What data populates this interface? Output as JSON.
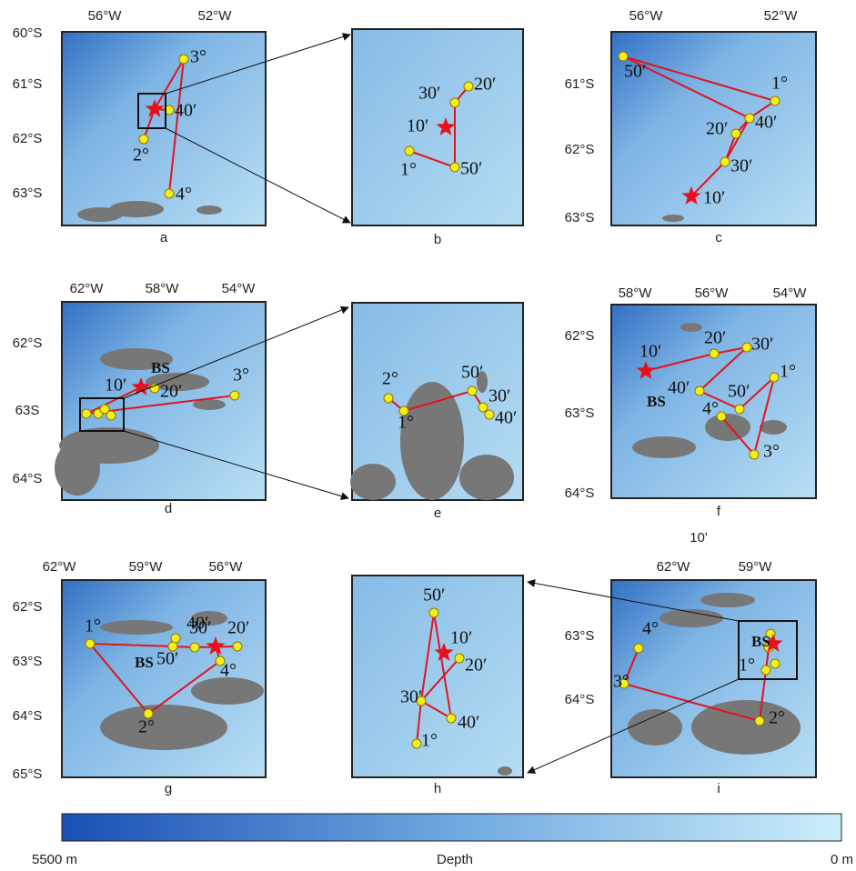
{
  "panels": [
    {
      "label": "a",
      "lon_labels": [
        "56°W",
        "52°W"
      ],
      "lat_labels": [
        "60°S",
        "61°S",
        "62°S",
        "63°S"
      ],
      "point_labels": [
        "3°",
        "40′",
        "2°",
        "4°"
      ],
      "annotations": []
    },
    {
      "label": "b",
      "lon_labels": [],
      "lat_labels": [],
      "point_labels": [
        "20′",
        "30′",
        "10′",
        "1°",
        "50′"
      ],
      "annotations": []
    },
    {
      "label": "c",
      "lon_labels": [
        "56°W",
        "52°W"
      ],
      "lat_labels": [
        "61°S",
        "62°S",
        "63°S"
      ],
      "point_labels": [
        "50′",
        "1°",
        "40′",
        "20′",
        "30′",
        "10′"
      ],
      "annotations": []
    },
    {
      "label": "d",
      "lon_labels": [
        "62°W",
        "58°W",
        "54°W"
      ],
      "lat_labels": [
        "62°S",
        "63S",
        "64°S"
      ],
      "point_labels": [
        "3°",
        "20′",
        "10′"
      ],
      "annotations": [
        "BS"
      ]
    },
    {
      "label": "e",
      "lon_labels": [],
      "lat_labels": [],
      "point_labels": [
        "2°",
        "1°",
        "50′",
        "30′",
        "40′"
      ],
      "annotations": []
    },
    {
      "label": "f",
      "lon_labels": [
        "58°W",
        "56°W",
        "54°W"
      ],
      "lat_labels": [
        "62°S",
        "63°S",
        "64°S"
      ],
      "point_labels": [
        "10′",
        "20′",
        "30′",
        "1°",
        "40′",
        "50′",
        "4°",
        "3°"
      ],
      "annotations": [
        "BS"
      ]
    },
    {
      "label": "g",
      "lon_labels": [
        "62°W",
        "59°W",
        "56°W"
      ],
      "lat_labels": [
        "62°S",
        "63°S",
        "64°S",
        "65°S"
      ],
      "point_labels": [
        "1°",
        "40′",
        "50′",
        "30′",
        "20′",
        "4°",
        "2°"
      ],
      "annotations": [
        "BS"
      ]
    },
    {
      "label": "h",
      "lon_labels": [],
      "lat_labels": [],
      "point_labels": [
        "50′",
        "10′",
        "20′",
        "30′",
        "40′",
        "1°"
      ],
      "annotations": []
    },
    {
      "label": "i",
      "lon_labels": [
        "62°W",
        "59°W"
      ],
      "lat_labels": [
        "63°S",
        "64°S"
      ],
      "point_labels": [
        "4°",
        "3°",
        "2°",
        "1°"
      ],
      "annotations": [
        "BS"
      ]
    }
  ],
  "extra_label": "10'",
  "colorbar": {
    "min_label": "5500 m",
    "title": "Depth",
    "max_label": "0 m"
  }
}
